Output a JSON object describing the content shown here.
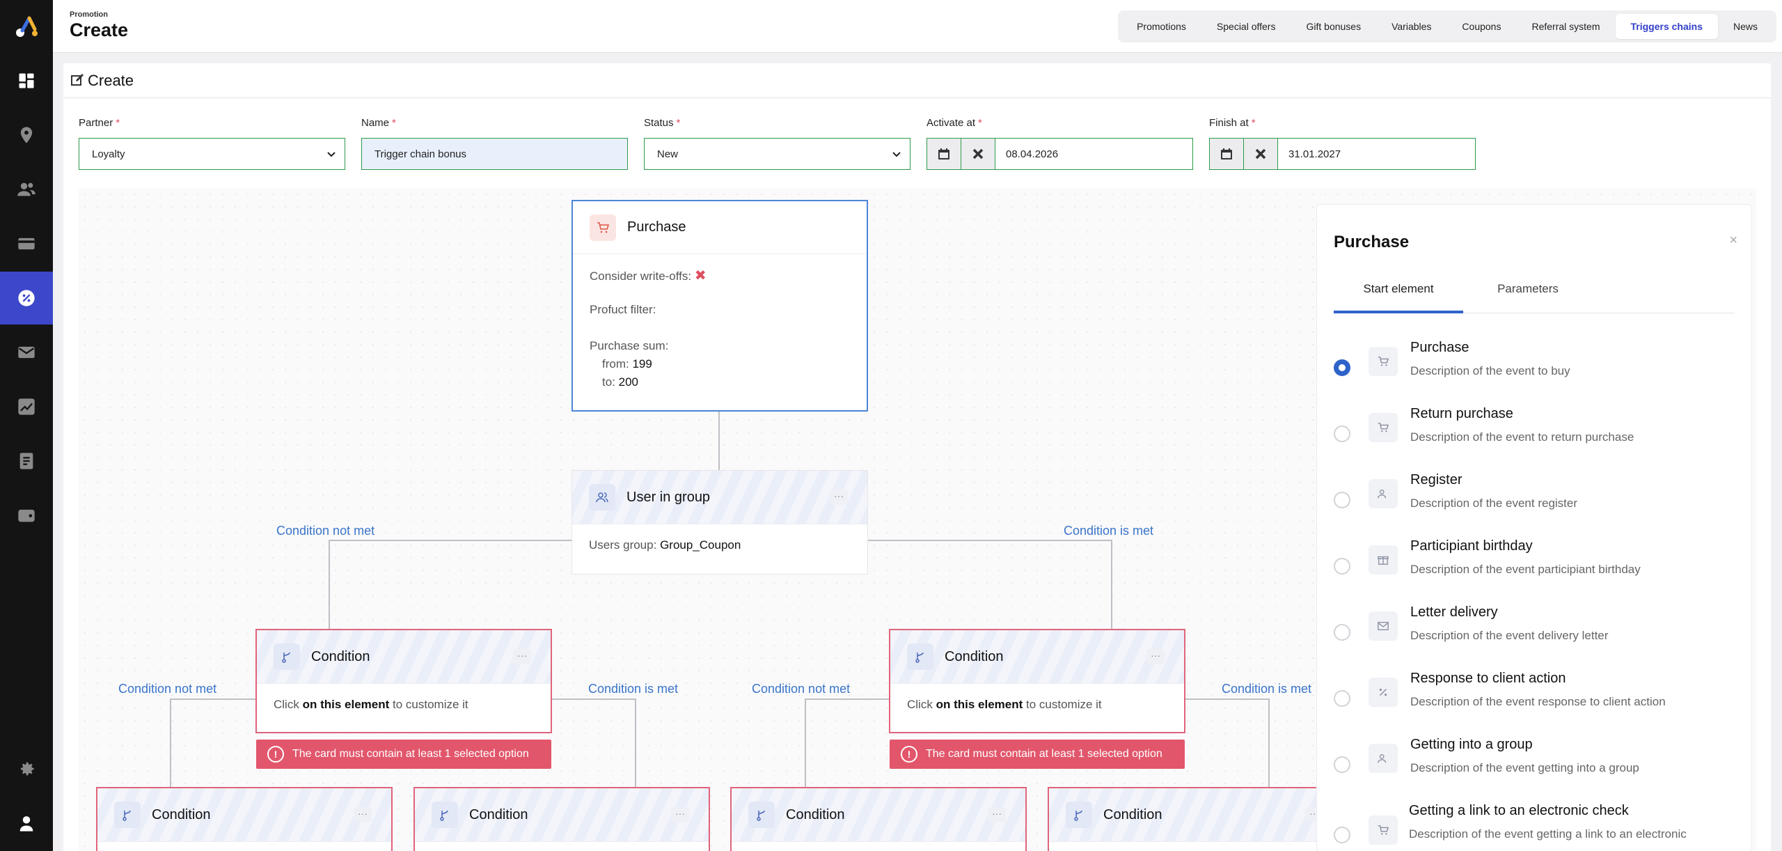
{
  "header": {
    "breadcrumb": "Promotion",
    "title": "Create",
    "tabs": [
      {
        "label": "Promotions"
      },
      {
        "label": "Special offers"
      },
      {
        "label": "Gift bonuses"
      },
      {
        "label": "Variables"
      },
      {
        "label": "Coupons"
      },
      {
        "label": "Referral system"
      },
      {
        "label": "Triggers chains",
        "active": true
      },
      {
        "label": "News"
      }
    ]
  },
  "form": {
    "heading": "Create",
    "partner": {
      "label": "Partner",
      "value": "Loyalty"
    },
    "name": {
      "label": "Name",
      "value": "Trigger chain bonus"
    },
    "status": {
      "label": "Status",
      "value": "New"
    },
    "activate_at": {
      "label": "Activate at",
      "value": "08.04.2026"
    },
    "finish_at": {
      "label": "Finish at",
      "value": "31.01.2027"
    },
    "required_mark": "*"
  },
  "flow": {
    "purchase_node": {
      "title": "Purchase",
      "writeoffs_label": "Consider write-offs:",
      "writeoffs_value": "✖",
      "filter_label": "Profuct filter:",
      "sum_label": "Purchase sum:",
      "from_label": "from:",
      "from_value": "199",
      "to_label": "to:",
      "to_value": "200"
    },
    "group_node": {
      "title": "User in group",
      "group_label": "Users group:",
      "group_value": "Group_Coupon",
      "menu": "···"
    },
    "condition_title": "Condition",
    "condition_hint_pre": "Click",
    "condition_hint_strong": "on this element",
    "condition_hint_post": "to customize it",
    "error_text": "The card must contain at least 1 selected option",
    "error_icon": "!",
    "label_not_met": "Condition not met",
    "label_met": "Condition is met",
    "menu": "···"
  },
  "panel": {
    "title": "Purchase",
    "close": "×",
    "tabs": [
      {
        "label": "Start element",
        "active": true
      },
      {
        "label": "Parameters"
      }
    ],
    "options": [
      {
        "title": "Purchase",
        "desc": "Description of the event to buy",
        "selected": true,
        "icon": "cart-icon"
      },
      {
        "title": "Return purchase",
        "desc": "Description of the event to return purchase",
        "icon": "cart-icon"
      },
      {
        "title": "Register",
        "desc": "Description of the event register",
        "icon": "users-icon"
      },
      {
        "title": "Participiant birthday",
        "desc": "Description of the event participiant birthday",
        "icon": "gift-icon"
      },
      {
        "title": "Letter delivery",
        "desc": "Description of the event delivery letter",
        "icon": "mail-icon"
      },
      {
        "title": "Response to client action",
        "desc": "Description of the event response to client action",
        "icon": "percent-icon"
      },
      {
        "title": "Getting into a group",
        "desc": "Description of the event getting into a group",
        "icon": "users-icon"
      },
      {
        "title": "Getting a link to an electronic check",
        "desc": "Description of the event getting a link to an electronic",
        "icon": "cart-icon"
      }
    ]
  },
  "colors": {
    "accent": "#3d47c9",
    "error": "#e2566b",
    "valid": "#2e9a49",
    "link": "#3a74c9"
  }
}
